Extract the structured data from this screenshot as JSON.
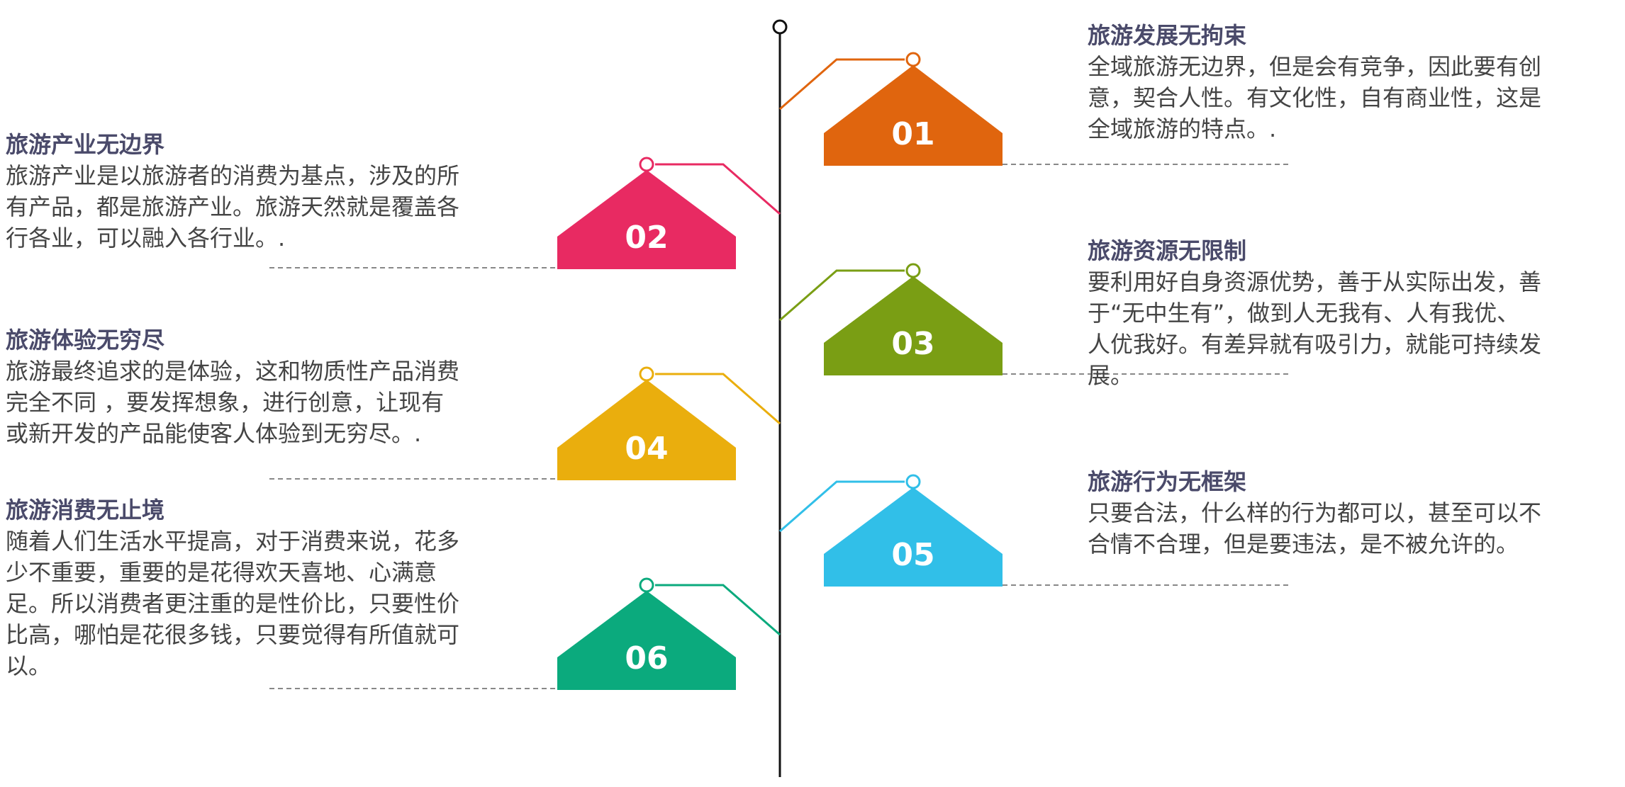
{
  "items": [
    {
      "num": "01",
      "title": "旅游发展无拘束",
      "body": "全域旅游无边界，但是会有竞争，因此要有创意，契合人性。有文化性，自有商业性，这是全域旅游的特点。.",
      "color": "#E0650E",
      "side": "right"
    },
    {
      "num": "02",
      "title": "旅游产业无边界",
      "body": "旅游产业是以旅游者的消费为基点，涉及的所有产品，都是旅游产业。旅游天然就是覆盖各行各业，可以融入各行业。.",
      "color": "#E82A62",
      "side": "left"
    },
    {
      "num": "03",
      "title": "旅游资源无限制",
      "body": "要利用好自身资源优势，善于从实际出发，善于“无中生有”，做到人无我有、人有我优、人优我好。有差异就有吸引力，就能可持续发展。",
      "color": "#7A9E14",
      "side": "right"
    },
    {
      "num": "04",
      "title": "旅游体验无穷尽",
      "body": "旅游最终追求的是体验，这和物质性产品消费完全不同 ，要发挥想象，进行创意，让现有或新开发的产品能使客人体验到无穷尽。.",
      "color": "#EAAE0D",
      "side": "left"
    },
    {
      "num": "05",
      "title": "旅游行为无框架",
      "body": "只要合法，什么样的行为都可以，甚至可以不合情不合理，但是要违法，是不被允许的。",
      "color": "#31BFE8",
      "side": "right"
    },
    {
      "num": "06",
      "title": "旅游消费无止境",
      "body": "随着人们生活水平提高，对于消费来说，花多少不重要，重要的是花得欢天喜地、心满意足。所以消费者更注重的是性价比，只要性价比高，哪怕是花很多钱，只要觉得有所值就可以。",
      "color": "#0BAA7D",
      "side": "left"
    }
  ]
}
